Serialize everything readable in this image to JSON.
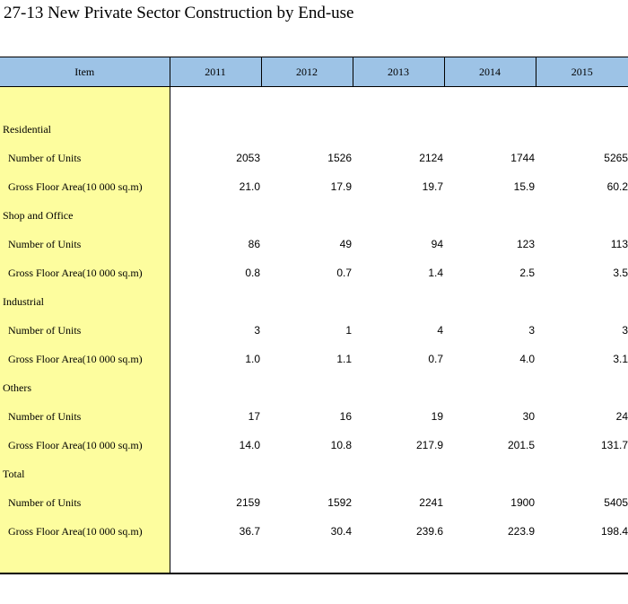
{
  "title": "27-13  New Private Sector Construction by End-use",
  "table": {
    "headers": [
      "Item",
      "2011",
      "2012",
      "2013",
      "2014",
      "2015"
    ],
    "groups": [
      {
        "category": "Residential",
        "rows": [
          {
            "label": "Number of Units",
            "values": [
              "2053",
              "1526",
              "2124",
              "1744",
              "5265"
            ]
          },
          {
            "label": "Gross Floor Area(10 000 sq.m)",
            "values": [
              "21.0",
              "17.9",
              "19.7",
              "15.9",
              "60.2"
            ]
          }
        ]
      },
      {
        "category": "Shop and Office",
        "rows": [
          {
            "label": "Number of Units",
            "values": [
              "86",
              "49",
              "94",
              "123",
              "113"
            ]
          },
          {
            "label": "Gross Floor Area(10 000 sq.m)",
            "values": [
              "0.8",
              "0.7",
              "1.4",
              "2.5",
              "3.5"
            ]
          }
        ]
      },
      {
        "category": "Industrial",
        "rows": [
          {
            "label": "Number of Units",
            "values": [
              "3",
              "1",
              "4",
              "3",
              "3"
            ]
          },
          {
            "label": "Gross Floor Area(10 000 sq.m)",
            "values": [
              "1.0",
              "1.1",
              "0.7",
              "4.0",
              "3.1"
            ]
          }
        ]
      },
      {
        "category": "Others",
        "rows": [
          {
            "label": "Number of Units",
            "values": [
              "17",
              "16",
              "19",
              "30",
              "24"
            ]
          },
          {
            "label": "Gross Floor Area(10 000 sq.m)",
            "values": [
              "14.0",
              "10.8",
              "217.9",
              "201.5",
              "131.7"
            ]
          }
        ]
      },
      {
        "category": "Total",
        "rows": [
          {
            "label": "Number of Units",
            "values": [
              "2159",
              "1592",
              "2241",
              "1900",
              "5405"
            ]
          },
          {
            "label": "Gross Floor Area(10 000 sq.m)",
            "values": [
              "36.7",
              "30.4",
              "239.6",
              "223.9",
              "198.4"
            ]
          }
        ]
      }
    ]
  },
  "colors": {
    "header_bg": "#9dc3e6",
    "item_column_bg": "#fdfd9e",
    "text": "#000000"
  }
}
